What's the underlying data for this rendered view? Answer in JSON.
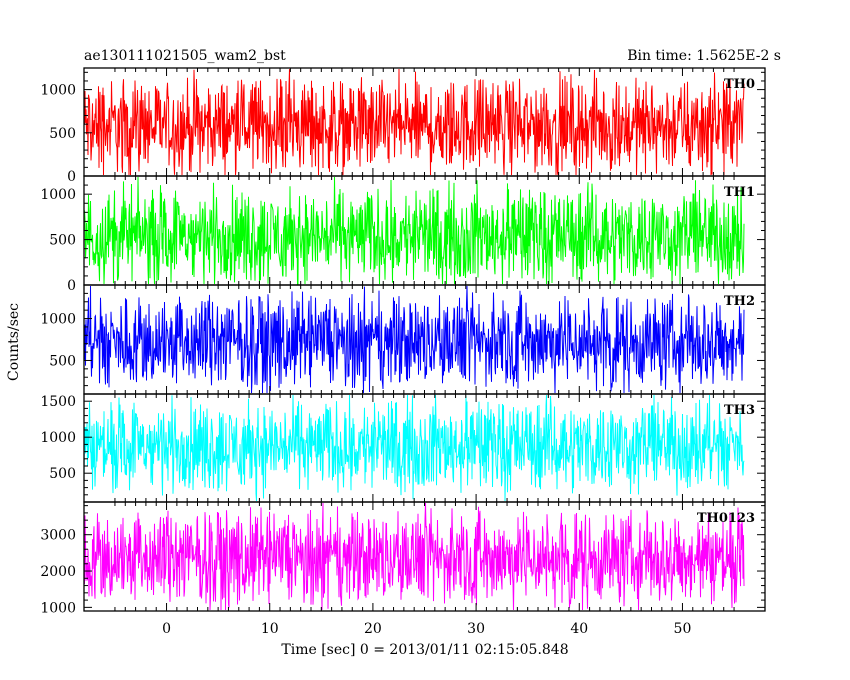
{
  "chart_data": {
    "type": "line",
    "title_left": "ae130111021505_wam2_bst",
    "title_right": "Bin time: 1.5625E-2 s",
    "xlabel": "Time [sec] 0 = 2013/01/11 02:15:05.848",
    "ylabel": "Counts/sec",
    "xlim": [
      -8,
      58
    ],
    "xticks": [
      0,
      10,
      20,
      30,
      40,
      50
    ],
    "x_data_range": [
      -8,
      56
    ],
    "panels": [
      {
        "name": "TH0",
        "color": "#ff0000",
        "ylim": [
          0,
          1250
        ],
        "yticks": [
          0,
          500,
          1000
        ],
        "baseline": 580,
        "noise": 420
      },
      {
        "name": "TH1",
        "color": "#00ff00",
        "ylim": [
          0,
          1200
        ],
        "yticks": [
          0,
          500,
          1000
        ],
        "baseline": 540,
        "noise": 400
      },
      {
        "name": "TH2",
        "color": "#0000ff",
        "ylim": [
          100,
          1400
        ],
        "yticks": [
          500,
          1000
        ],
        "baseline": 720,
        "noise": 430
      },
      {
        "name": "TH3",
        "color": "#00ffff",
        "ylim": [
          100,
          1600
        ],
        "yticks": [
          500,
          1000,
          1500
        ],
        "baseline": 880,
        "noise": 480
      },
      {
        "name": "TH0123",
        "color": "#ff00ff",
        "ylim": [
          900,
          3900
        ],
        "yticks": [
          1000,
          2000,
          3000
        ],
        "baseline": 2350,
        "noise": 1000
      }
    ]
  }
}
